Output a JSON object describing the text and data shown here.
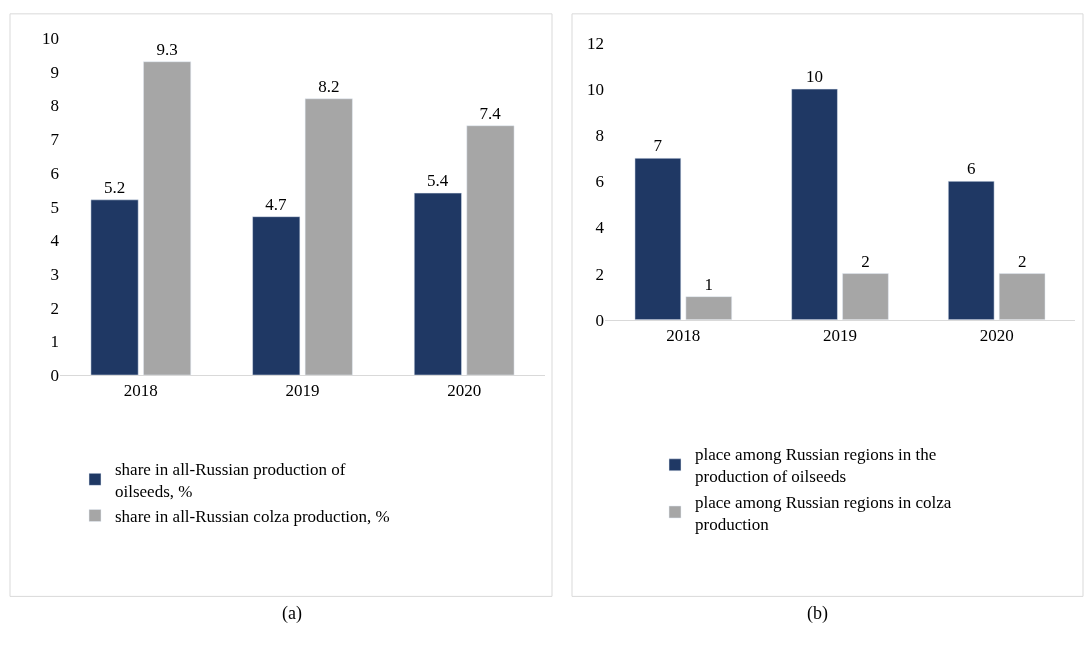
{
  "chart_data": [
    {
      "type": "bar",
      "categories": [
        "2018",
        "2019",
        "2020"
      ],
      "series": [
        {
          "name": "share in all-Russian production of oilseeds, %",
          "color": "#1f3864",
          "values": [
            5.2,
            4.7,
            5.4
          ]
        },
        {
          "name": "share in all-Russian colza production, %",
          "color": "#a6a6a6",
          "values": [
            9.3,
            8.2,
            7.4
          ]
        }
      ],
      "ylim": [
        0,
        10
      ],
      "yticks": [
        0,
        1,
        2,
        3,
        4,
        5,
        6,
        7,
        8,
        9,
        10
      ],
      "data_labels": true,
      "legend": "bottom",
      "grid": false,
      "annotations": [
        "(a)"
      ]
    },
    {
      "type": "bar",
      "categories": [
        "2018",
        "2019",
        "2020"
      ],
      "series": [
        {
          "name": "place among Russian regions in the production of oilseeds",
          "color": "#1f3864",
          "values": [
            7,
            10,
            6
          ]
        },
        {
          "name": "place among Russian regions in colza production",
          "color": "#a6a6a6",
          "values": [
            1,
            2,
            2
          ]
        }
      ],
      "ylim": [
        0,
        12
      ],
      "yticks": [
        0,
        2,
        4,
        6,
        8,
        10,
        12
      ],
      "data_labels": true,
      "legend": "bottom",
      "grid": false,
      "annotations": [
        "(b)"
      ]
    }
  ]
}
